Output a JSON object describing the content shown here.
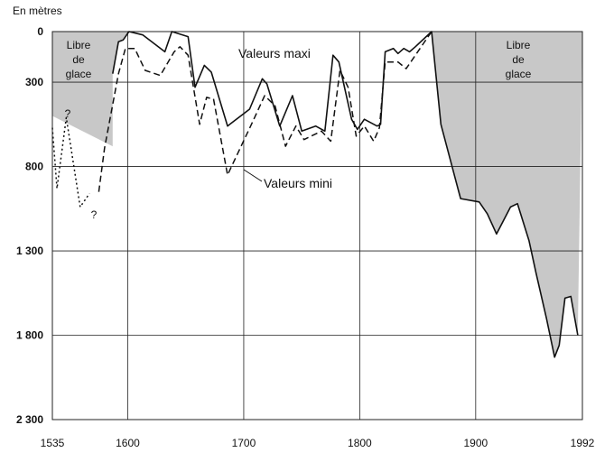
{
  "chart_data": {
    "type": "line",
    "y_unit_label": "En mètres",
    "y_axis_inverted": true,
    "ylim": [
      0,
      2300
    ],
    "xlim": [
      1535,
      1992
    ],
    "y_ticks": [
      {
        "value": 0,
        "label": "0"
      },
      {
        "value": 300,
        "label": "300"
      },
      {
        "value": 800,
        "label": "800"
      },
      {
        "value": 1300,
        "label": "1 300"
      },
      {
        "value": 1800,
        "label": "1 800"
      },
      {
        "value": 2300,
        "label": "2 300"
      }
    ],
    "x_ticks": [
      {
        "value": 1535,
        "label": "1535"
      },
      {
        "value": 1600,
        "label": "1600"
      },
      {
        "value": 1700,
        "label": "1700"
      },
      {
        "value": 1800,
        "label": "1800"
      },
      {
        "value": 1900,
        "label": "1900"
      },
      {
        "value": 1992,
        "label": "1992"
      }
    ],
    "grid": "horizontal at y ticks; vertical at 1600, 1700, 1800, 1900",
    "ice_free_fill": "#c8c8c8",
    "series": [
      {
        "name": "Valeurs maxi",
        "style": "solid",
        "points": [
          [
            1587,
            250
          ],
          [
            1592,
            60
          ],
          [
            1596,
            50
          ],
          [
            1601,
            0
          ],
          [
            1613,
            20
          ],
          [
            1632,
            120
          ],
          [
            1638,
            0
          ],
          [
            1652,
            30
          ],
          [
            1658,
            330
          ],
          [
            1666,
            200
          ],
          [
            1672,
            240
          ],
          [
            1686,
            560
          ],
          [
            1705,
            460
          ],
          [
            1716,
            280
          ],
          [
            1720,
            310
          ],
          [
            1731,
            560
          ],
          [
            1742,
            380
          ],
          [
            1750,
            590
          ],
          [
            1762,
            560
          ],
          [
            1770,
            590
          ],
          [
            1777,
            140
          ],
          [
            1782,
            180
          ],
          [
            1793,
            520
          ],
          [
            1798,
            580
          ],
          [
            1804,
            520
          ],
          [
            1815,
            560
          ],
          [
            1818,
            550
          ],
          [
            1822,
            120
          ],
          [
            1829,
            100
          ],
          [
            1833,
            130
          ],
          [
            1838,
            100
          ],
          [
            1843,
            120
          ],
          [
            1848,
            90
          ],
          [
            1862,
            0
          ],
          [
            1870,
            550
          ],
          [
            1887,
            990
          ],
          [
            1903,
            1010
          ],
          [
            1910,
            1080
          ],
          [
            1918,
            1200
          ],
          [
            1930,
            1040
          ],
          [
            1936,
            1020
          ],
          [
            1946,
            1240
          ],
          [
            1952,
            1430
          ],
          [
            1961,
            1700
          ],
          [
            1968,
            1930
          ],
          [
            1972,
            1860
          ],
          [
            1977,
            1580
          ],
          [
            1982,
            1570
          ],
          [
            1988,
            1800
          ]
        ]
      },
      {
        "name": "Valeurs mini",
        "style": "dashed",
        "points": [
          [
            1575,
            950
          ],
          [
            1580,
            690
          ],
          [
            1592,
            250
          ],
          [
            1598,
            100
          ],
          [
            1606,
            100
          ],
          [
            1615,
            230
          ],
          [
            1628,
            260
          ],
          [
            1640,
            120
          ],
          [
            1645,
            90
          ],
          [
            1652,
            140
          ],
          [
            1662,
            550
          ],
          [
            1668,
            390
          ],
          [
            1674,
            400
          ],
          [
            1686,
            850
          ],
          [
            1708,
            530
          ],
          [
            1718,
            380
          ],
          [
            1727,
            440
          ],
          [
            1736,
            680
          ],
          [
            1745,
            560
          ],
          [
            1752,
            640
          ],
          [
            1767,
            590
          ],
          [
            1775,
            650
          ],
          [
            1783,
            230
          ],
          [
            1790,
            330
          ],
          [
            1797,
            620
          ],
          [
            1804,
            560
          ],
          [
            1812,
            650
          ],
          [
            1817,
            570
          ],
          [
            1822,
            180
          ],
          [
            1833,
            180
          ],
          [
            1840,
            220
          ],
          [
            1846,
            160
          ],
          [
            1862,
            0
          ]
        ]
      },
      {
        "name": "",
        "style": "dotted",
        "uncertain": true,
        "points": [
          [
            1535,
            570
          ],
          [
            1539,
            930
          ],
          [
            1547,
            510
          ],
          [
            1559,
            1040
          ],
          [
            1567,
            960
          ]
        ]
      }
    ],
    "annotations": {
      "ice_free_left": [
        "Libre",
        "de",
        "glace"
      ],
      "ice_free_right": [
        "Libre",
        "de",
        "glace"
      ],
      "question_mark": "?"
    }
  }
}
